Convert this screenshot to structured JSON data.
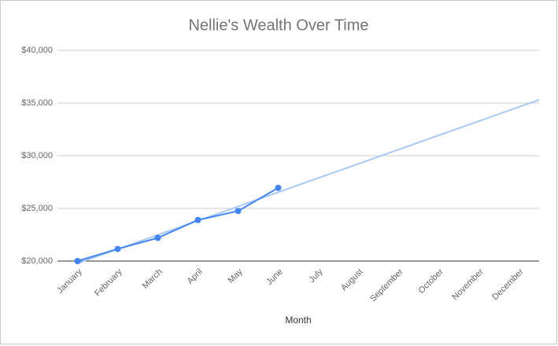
{
  "chart_data": {
    "type": "line",
    "title": "Nellie's Wealth Over Time",
    "x_label": "Month",
    "categories": [
      "January",
      "February",
      "March",
      "April",
      "May",
      "June",
      "July",
      "August",
      "September",
      "October",
      "November",
      "December"
    ],
    "series": [
      {
        "color": "#4285f4",
        "values": [
          20000,
          21150,
          22200,
          23900,
          24750,
          26950,
          null,
          null,
          null,
          null,
          null,
          null
        ]
      }
    ],
    "trendline": {
      "color": "#a9c8f5",
      "values": [
        19783,
        21133,
        22483,
        23833,
        25183,
        26533,
        27883,
        29233,
        30583,
        31933,
        33283,
        34633
      ]
    },
    "ylim": [
      20000,
      40000
    ],
    "yticks": [
      {
        "value": 20000,
        "label": "$20,000"
      },
      {
        "value": 25000,
        "label": "$25,000"
      },
      {
        "value": 30000,
        "label": "$30,000"
      },
      {
        "value": 35000,
        "label": "$35,000"
      },
      {
        "value": 40000,
        "label": "$40,000"
      }
    ],
    "grid": true
  }
}
